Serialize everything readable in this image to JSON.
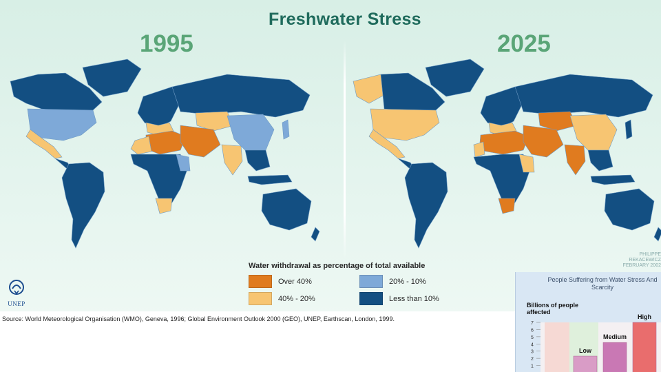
{
  "title": "Freshwater Stress",
  "years": [
    "1995",
    "2025"
  ],
  "legend": {
    "title": "Water withdrawal as percentage of total available",
    "items": [
      {
        "label": "Over 40%",
        "color": "#e07b1f"
      },
      {
        "label": "20% - 10%",
        "color": "#7ea9d8"
      },
      {
        "label": "40% - 20%",
        "color": "#f7c572"
      },
      {
        "label": "Less than 10%",
        "color": "#134f82"
      }
    ]
  },
  "colors": {
    "ocean": "#e1f2ea",
    "border": "#6f9bc4"
  },
  "logo_text": "UNEP",
  "credit": "PHILIPPE REKACEWICZ FEBRUARY 2002",
  "source": "Source: World Meteorological Organisation (WMO), Geneva, 1996; Global Environment Outlook 2000 (GEO), UNEP, Earthscan, London, 1999.",
  "inset": {
    "title": "People Suffering from Water Stress And Scarcity",
    "ylabel": "Billions of people affected",
    "chart_data": {
      "type": "bar",
      "title": "People Suffering from Water Stress And Scarcity",
      "ylabel": "Billions of people affected",
      "yticks": [
        1,
        2,
        3,
        4,
        5,
        6,
        7
      ],
      "ylim": [
        0,
        7
      ],
      "categories": [
        "Low",
        "Medium",
        "High"
      ],
      "values": [
        2.3,
        4.2,
        7.0
      ],
      "series_colors": [
        "#d99cc6",
        "#c978b4",
        "#e96d6d"
      ]
    }
  }
}
